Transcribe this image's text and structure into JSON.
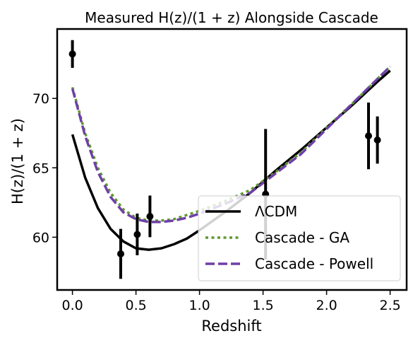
{
  "chart_data": {
    "type": "line",
    "title": "Measured H(z)/(1 + z) Alongside Cascade",
    "xlabel": "Redshift",
    "ylabel": "H(z)/(1 + z)",
    "xlim": [
      -0.12,
      2.63
    ],
    "ylim": [
      56.2,
      75.0
    ],
    "xticks": [
      0.0,
      0.5,
      1.0,
      1.5,
      2.0,
      2.5
    ],
    "xtick_labels": [
      "0.0",
      "0.5",
      "1.0",
      "1.5",
      "2.0",
      "2.5"
    ],
    "yticks": [
      60,
      65,
      70
    ],
    "ytick_labels": [
      "60",
      "65",
      "70"
    ],
    "grid": false,
    "legend_position": "bottom-right",
    "series": [
      {
        "name": "ΛCDM",
        "color": "#000000",
        "style": "solid",
        "x": [
          0.0,
          0.1,
          0.2,
          0.3,
          0.4,
          0.5,
          0.6,
          0.7,
          0.8,
          0.9,
          1.0,
          1.2,
          1.4,
          1.6,
          1.8,
          2.0,
          2.2,
          2.4,
          2.5
        ],
        "y": [
          67.4,
          64.3,
          62.1,
          60.6,
          59.7,
          59.2,
          59.1,
          59.2,
          59.5,
          59.9,
          60.5,
          61.8,
          63.2,
          64.8,
          66.3,
          67.9,
          69.5,
          71.2,
          72.0
        ]
      },
      {
        "name": "Cascade - GA",
        "color": "#5e9a2f",
        "style": "dotted",
        "x": [
          0.0,
          0.1,
          0.2,
          0.3,
          0.4,
          0.5,
          0.6,
          0.7,
          0.8,
          0.9,
          1.0,
          1.2,
          1.4,
          1.6,
          1.8,
          2.0,
          2.2,
          2.4,
          2.5
        ],
        "y": [
          70.8,
          67.5,
          65.0,
          63.2,
          62.0,
          61.4,
          61.2,
          61.2,
          61.3,
          61.6,
          61.9,
          62.6,
          63.4,
          64.7,
          66.1,
          67.9,
          69.6,
          71.4,
          72.3
        ]
      },
      {
        "name": "Cascade - Powell",
        "color": "#6f3fa8",
        "style": "dashed",
        "x": [
          0.0,
          0.1,
          0.2,
          0.3,
          0.4,
          0.5,
          0.6,
          0.7,
          0.8,
          0.9,
          1.0,
          1.2,
          1.4,
          1.6,
          1.8,
          2.0,
          2.2,
          2.4,
          2.5
        ],
        "y": [
          70.7,
          67.3,
          64.7,
          62.9,
          61.8,
          61.3,
          61.1,
          61.1,
          61.2,
          61.4,
          61.7,
          62.4,
          63.2,
          64.6,
          66.0,
          67.8,
          69.6,
          71.4,
          72.3
        ]
      }
    ],
    "measurements": {
      "name": "Measured H(z)/(1 + z)",
      "color": "#000000",
      "x": [
        0.0,
        0.38,
        0.51,
        0.61,
        1.52,
        2.33,
        2.4
      ],
      "y": [
        73.2,
        58.8,
        60.2,
        61.5,
        63.1,
        67.3,
        67.0
      ],
      "yerr": [
        1.0,
        1.8,
        1.5,
        1.5,
        4.7,
        2.4,
        1.7
      ]
    }
  }
}
